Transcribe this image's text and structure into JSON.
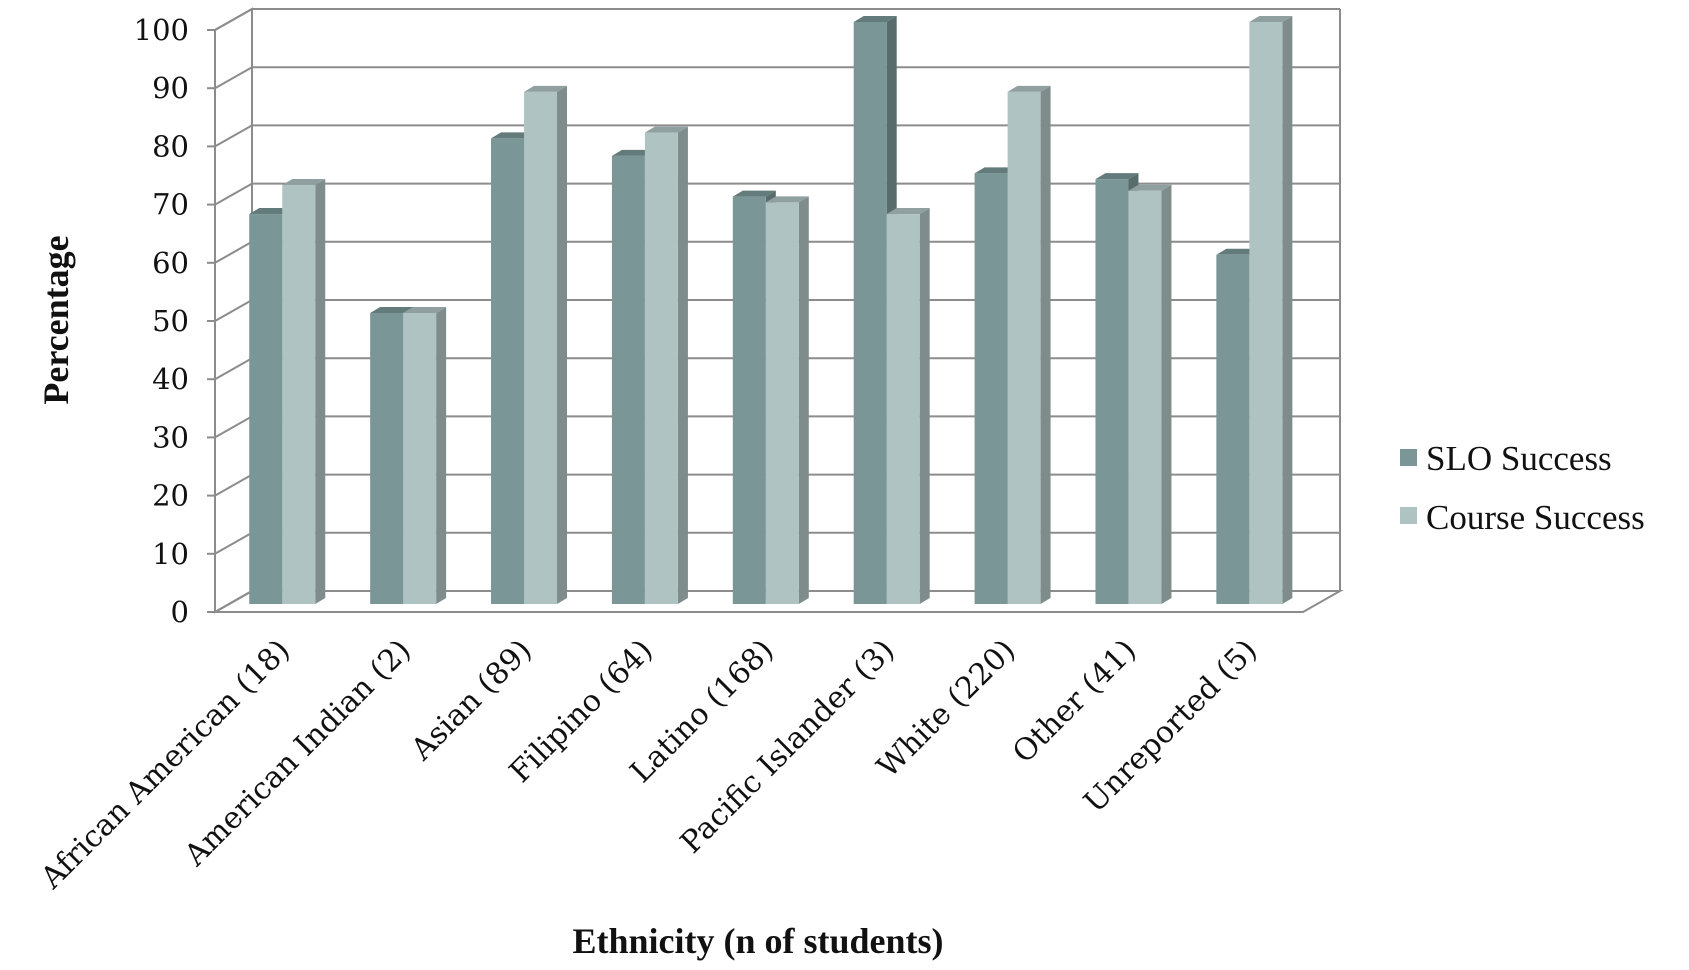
{
  "chart_data": {
    "type": "bar",
    "style": "3d-clustered-column",
    "xlabel": "Ethnicity (n of students)",
    "ylabel": "Percentage",
    "ylim": [
      0,
      100
    ],
    "yticks": [
      0,
      10,
      20,
      30,
      40,
      50,
      60,
      70,
      80,
      90,
      100
    ],
    "grid": true,
    "legend_position": "right",
    "categories": [
      "African American (18)",
      "American Indian (2)",
      "Asian (89)",
      "Filipino (64)",
      "Latino (168)",
      "Pacific Islander (3)",
      "White (220)",
      "Other (41)",
      "Unreported (5)"
    ],
    "series": [
      {
        "name": "SLO Success",
        "color": "#7a9696",
        "values": [
          67,
          50,
          80,
          77,
          70,
          100,
          74,
          73,
          60
        ]
      },
      {
        "name": "Course Success",
        "color": "#b0c3c3",
        "values": [
          72,
          50,
          88,
          81,
          69,
          67,
          88,
          71,
          100
        ]
      }
    ]
  }
}
